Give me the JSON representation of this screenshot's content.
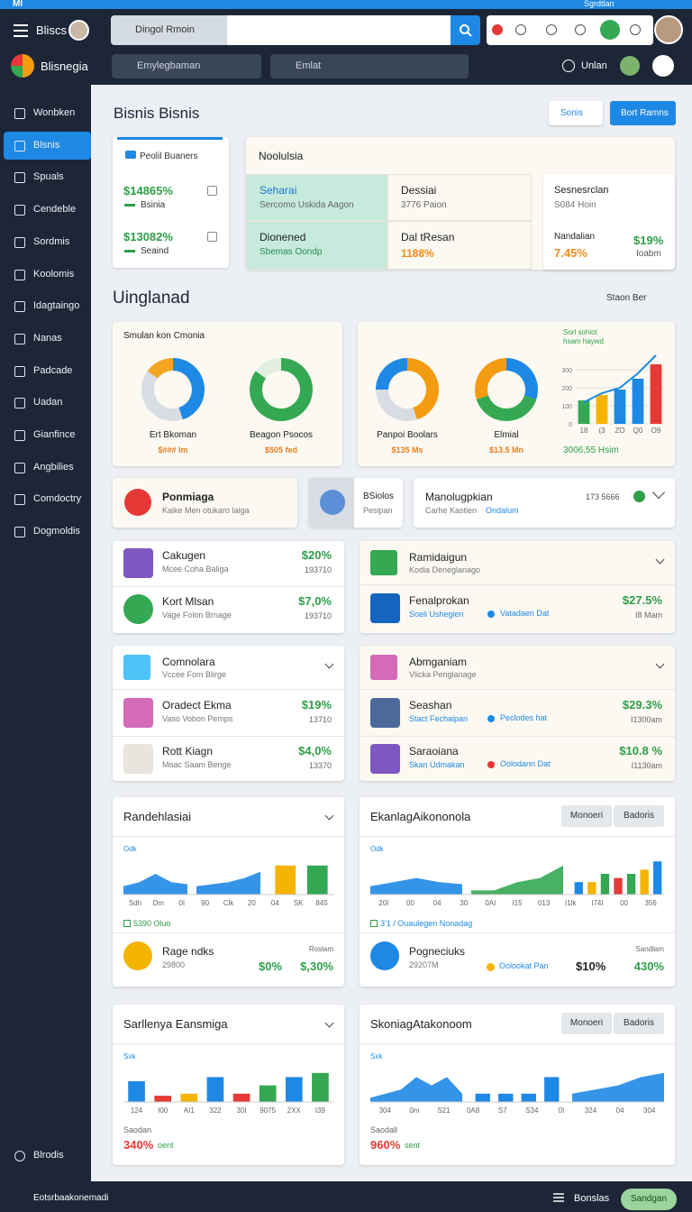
{
  "status_bar": {
    "app": "Ml",
    "account": "Sgrdtlan"
  },
  "header": {
    "menu": "Bliscs",
    "search_scope": "Dingol Rmoin",
    "brand": "Blisnegia",
    "filter_left": "Emylegbaman",
    "filter_right": "Emlat",
    "user": "Unlan"
  },
  "sidebar": {
    "items": [
      "Wonbken",
      "Blsnis",
      "Spuals",
      "Cendeble",
      "Sordmis",
      "Koolomis",
      "Idagtaingo",
      "Nanas",
      "Padcade",
      "Uadan",
      "Gianfince",
      "Angbilies",
      "Comdoctry",
      "Dogmoldis"
    ],
    "active": 1,
    "bottom": "Blrodis"
  },
  "page": {
    "title": "Bisnis Bisnis",
    "buttons": [
      "Sonis",
      "Bort Ramns"
    ]
  },
  "summary": {
    "header": "Peolil Buaners",
    "items": [
      {
        "value": "$14865%",
        "label": "Bsinia"
      },
      {
        "value": "$13082%",
        "label": "Seaind"
      }
    ]
  },
  "overview": {
    "title": "Noolulsia",
    "cells": [
      {
        "title": "Seharai",
        "sub": "Sercomo Uskida Aagon"
      },
      {
        "title": "Dessiai",
        "sub": "3776 Paion"
      },
      {
        "title": "Dionened",
        "sub": "Sbemas Oondp"
      },
      {
        "title": "Dal tResan",
        "sub": "1188%"
      }
    ],
    "side": {
      "title": "Sesnesrclan",
      "subtitle": "S084 Hoin",
      "label": "Nandalian",
      "value": "$19%",
      "change": "7.45%",
      "note": "Ioabm"
    }
  },
  "section": {
    "title": "Uinglanad",
    "select": "Staon Ber"
  },
  "donut_cards": [
    {
      "title": "Smulan kon Cmonia",
      "donuts": [
        {
          "label": "Ert Bkoman",
          "value": "$### Im",
          "chart": {
            "type": "pie",
            "values": [
              45,
              40,
              15
            ],
            "colors": [
              "#1e88e5",
              "#d9dde3",
              "#f4a623"
            ]
          }
        },
        {
          "label": "Beagon Psocos",
          "value": "$505 fed",
          "chart": {
            "type": "pie",
            "values": [
              85,
              15
            ],
            "colors": [
              "#34a853",
              "#e3eee3"
            ]
          }
        }
      ]
    },
    {
      "donuts": [
        {
          "label": "Panpoi Boolars",
          "value": "$135 Ms",
          "chart": {
            "type": "pie",
            "values": [
              45,
              30,
              25
            ],
            "colors": [
              "#f39c12",
              "#d9dde3",
              "#1e88e5"
            ]
          }
        },
        {
          "label": "Elmial",
          "value": "$13.5 Mn",
          "chart": {
            "type": "pie",
            "values": [
              30,
              40,
              30
            ],
            "colors": [
              "#1e88e5",
              "#34a853",
              "#f39c12"
            ]
          }
        }
      ],
      "combo": {
        "legend_title": "Sorl sohiot",
        "legend_sub": "hsam haywd",
        "ylim": [
          0,
          400
        ],
        "yticks": [
          0,
          100,
          200,
          300
        ],
        "categories": [
          "18",
          "(3",
          "ZO",
          "Q0",
          "O9"
        ],
        "bars": {
          "type": "bar",
          "values": [
            130,
            160,
            190,
            250,
            330
          ],
          "colors": [
            "#34a853",
            "#f4b400",
            "#1e88e5",
            "#1e88e5",
            "#e53935"
          ]
        },
        "line": {
          "type": "line",
          "values": [
            120,
            170,
            200,
            280,
            380
          ],
          "color": "#1e88e5"
        },
        "footer": "3006,55 Hsim"
      }
    }
  ],
  "alerts": [
    {
      "title": "Ponmiaga",
      "sub": "Kaike Men otukaro laiga"
    },
    {
      "title": "BSiolos",
      "sub": "Pesipan"
    },
    {
      "title": "Manolugpkian",
      "sub": "Carhe Kastien",
      "highlight": "Ondalum",
      "meta": "173 5666"
    }
  ],
  "lists": [
    {
      "items": [
        {
          "title": "Cakugen",
          "sub": "Mcee Coha Baliga",
          "value": "$20%",
          "note": "193710"
        },
        {
          "title": "Kort Mlsan",
          "sub": "Vage Folon Brnage",
          "value": "$7,0%",
          "note": "193710"
        }
      ]
    },
    {
      "header": {
        "title": "Ramidaigun",
        "sub": "Kodia Deneglanago"
      },
      "items": [
        {
          "title": "Fenalprokan",
          "sub": "Soeli Ushegien",
          "tag": "Vatadaen Dat",
          "value": "$27.5%",
          "note": "I8 Mam"
        }
      ]
    },
    {
      "header": {
        "title": "Comnolara",
        "sub": "Vccee Fom Blirge"
      },
      "items": [
        {
          "title": "Oradect Ekma",
          "sub": "Vaso Vobon Pemps",
          "value": "$19%",
          "note": "13710"
        },
        {
          "title": "Rott Kiagn",
          "sub": "Moac Saam Benge",
          "value": "$4,0%",
          "note": "13370"
        }
      ]
    },
    {
      "header": {
        "title": "Abmganiam",
        "sub": "Vlicka Penglanage"
      },
      "items": [
        {
          "title": "Seashan",
          "sub": "Stact Fechaipan",
          "tag": "Peclodes hat",
          "value": "$29.3%",
          "note": "I1300am"
        },
        {
          "title": "Saraoiana",
          "sub": "Skan Udmakan",
          "tag": "Oolodann Dat",
          "value": "$10.8 %",
          "note": "I1130am"
        }
      ]
    }
  ],
  "chart_cards": [
    {
      "title": "Randehlasiai",
      "legend": "Odk",
      "plots": [
        {
          "type": "area",
          "values": [
            2,
            3,
            5,
            3,
            2.5
          ],
          "color": "#1e88e5",
          "ylim": [
            0,
            10
          ]
        },
        {
          "type": "area",
          "values": [
            2,
            2.5,
            3,
            4,
            5.5
          ],
          "color": "#1e88e5",
          "ylim": [
            0,
            10
          ]
        },
        {
          "type": "bar",
          "values": [
            7,
            7
          ],
          "colors": [
            "#f4b400",
            "#34a853"
          ],
          "ylim": [
            0,
            10
          ]
        }
      ],
      "x_labels": [
        "Sdh",
        "Dm",
        "0I",
        "90",
        "Clk",
        "20",
        "04",
        "SK",
        "845"
      ],
      "stat": "5390 Oluo",
      "item": {
        "title": "Rage ndks",
        "sub": "29800",
        "v1": "$0%",
        "v2": "$,30%",
        "note": "Roslam"
      }
    },
    {
      "title": "EkanlagAikononola",
      "toggle": [
        "Monoeri",
        "Badoris"
      ],
      "legend": "Odk",
      "plots": [
        {
          "type": "area",
          "values": [
            2,
            3,
            4,
            3,
            2.5
          ],
          "color": "#1e88e5",
          "ylim": [
            0,
            10
          ]
        },
        {
          "type": "area",
          "values": [
            1,
            1,
            3,
            4,
            7
          ],
          "color": "#34a853",
          "ylim": [
            0,
            10
          ]
        },
        {
          "type": "bar",
          "values": [
            3,
            3,
            5,
            4,
            5,
            6,
            8
          ],
          "colors": [
            "#1e88e5",
            "#f4b400",
            "#34a853",
            "#e53935",
            "#34a853",
            "#f4b400",
            "#1e88e5"
          ],
          "ylim": [
            0,
            10
          ]
        }
      ],
      "x_labels": [
        "20I",
        "00",
        "04",
        "30",
        "0AI",
        "I15",
        "013",
        "I1lk",
        "I74I",
        "00",
        "356"
      ],
      "stat": "3'1 / Ouaulegen Nonadag",
      "item": {
        "title": "Pogneciuks",
        "sub": "29207M",
        "tag": "Oolookat Pan",
        "v1": "$10%",
        "v2": "430%",
        "note": "Sandlam"
      }
    },
    {
      "title": "Sarllenya Eansmiga",
      "legend": "Sxk",
      "plots": [
        {
          "type": "bar",
          "values": [
            5,
            1.5,
            2,
            6,
            2,
            4,
            6,
            7
          ],
          "colors": [
            "#1e88e5",
            "#e53935",
            "#f4b400",
            "#1e88e5",
            "#e53935",
            "#34a853",
            "#1e88e5",
            "#34a853"
          ],
          "ylim": [
            0,
            10
          ]
        }
      ],
      "x_labels": [
        "124",
        "I00",
        "AI1",
        "322",
        "30I",
        "9075",
        "2XX",
        "I39"
      ],
      "footer": {
        "label": "Saodan",
        "value": "340%",
        "note": "oent"
      }
    },
    {
      "title": "SkoniagAtakonoom",
      "toggle": [
        "Monoeri",
        "Badoris"
      ],
      "legend": "Sxk",
      "plots": [
        {
          "type": "area",
          "values": [
            1,
            2,
            3,
            6,
            4,
            6,
            2
          ],
          "color": "#1e88e5",
          "ylim": [
            0,
            10
          ]
        },
        {
          "type": "bar",
          "values": [
            2,
            2,
            2,
            6
          ],
          "colors": [
            "#1e88e5",
            "#1e88e5",
            "#1e88e5",
            "#1e88e5"
          ],
          "ylim": [
            0,
            10
          ]
        },
        {
          "type": "area",
          "values": [
            2,
            3,
            4,
            6,
            7
          ],
          "color": "#1e88e5",
          "ylim": [
            0,
            10
          ]
        }
      ],
      "x_labels": [
        "304",
        "0m",
        "S21",
        "0A8",
        "S7",
        "S34",
        "0I",
        "324",
        "04",
        "304"
      ],
      "footer": {
        "label": "Saodall",
        "value": "960%",
        "note": "sent"
      }
    }
  ],
  "footer": {
    "left": "Eotsrbaakonemadi",
    "menu": "Bonslas",
    "button": "Sandgan"
  }
}
